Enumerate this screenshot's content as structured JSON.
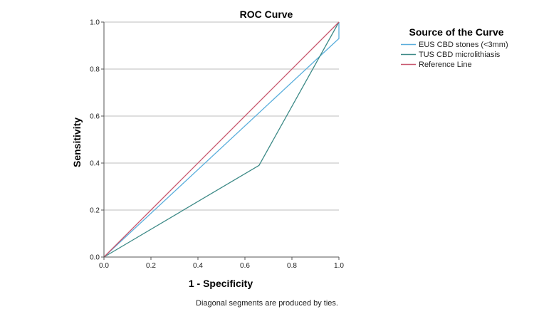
{
  "chart_data": {
    "type": "line",
    "title": "ROC Curve",
    "xlabel": "1 - Specificity",
    "ylabel": "Sensitivity",
    "xlim": [
      0,
      1
    ],
    "ylim": [
      0,
      1
    ],
    "x_ticks": [
      "0.0",
      "0.2",
      "0.4",
      "0.6",
      "0.8",
      "1.0"
    ],
    "y_ticks": [
      "0.0",
      "0.2",
      "0.4",
      "0.6",
      "0.8",
      "1.0"
    ],
    "grid": "horizontal",
    "legend_title": "Source of the Curve",
    "legend_position": "top-right",
    "footnote": "Diagonal segments are produced by ties.",
    "series": [
      {
        "name": "EUS CBD stones (<3mm)",
        "color": "#5aaedc",
        "x": [
          0.0,
          1.0,
          1.0
        ],
        "y": [
          0.0,
          0.93,
          1.0
        ]
      },
      {
        "name": "TUS CBD microlithiasis",
        "color": "#3d8a87",
        "x": [
          0.0,
          0.66,
          1.0
        ],
        "y": [
          0.0,
          0.39,
          1.0
        ]
      },
      {
        "name": "Reference Line",
        "color": "#c8576e",
        "x": [
          0.0,
          1.0
        ],
        "y": [
          0.0,
          1.0
        ]
      }
    ]
  }
}
